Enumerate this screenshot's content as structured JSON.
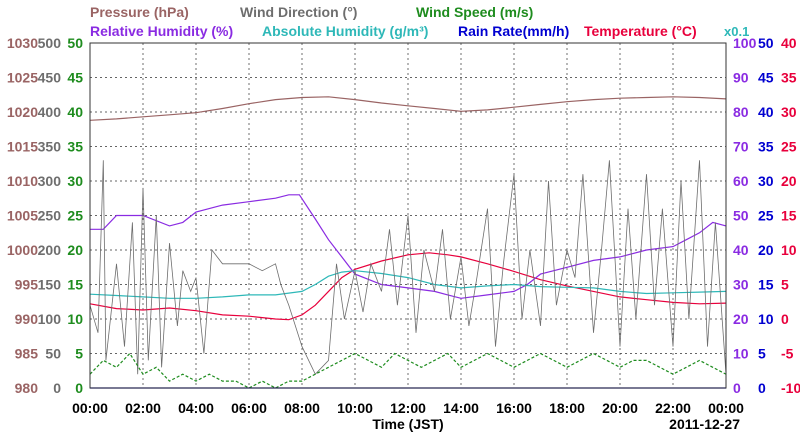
{
  "colors": {
    "pressure": "#9a6464",
    "wind_direction": "#6e6e6e",
    "wind_speed": "#1e8c1e",
    "relative_humidity": "#8a2be2",
    "absolute_humidity": "#2eb8b8",
    "rain_rate": "#0000d0",
    "temperature": "#e8003c",
    "grid": "#333333"
  },
  "chart_data": {
    "type": "line",
    "title": "",
    "legend_row1": [
      {
        "key": "pressure",
        "label": "Pressure (hPa)"
      },
      {
        "key": "wind_direction",
        "label": "Wind Direction (°)"
      },
      {
        "key": "wind_speed",
        "label": "Wind Speed (m/s)"
      }
    ],
    "legend_row2": [
      {
        "key": "relative_humidity",
        "label": "Relative Humidity (%)"
      },
      {
        "key": "absolute_humidity",
        "label": "Absolute Humidity (g/m³)"
      },
      {
        "key": "rain_rate",
        "label": "Rain Rate(mm/h)"
      },
      {
        "key": "temperature",
        "label": "Temperature (°C)"
      }
    ],
    "rain_multiplier_label": "x0.1",
    "xlabel": "Time (JST)",
    "date_label": "2011-12-27",
    "x_ticks": [
      "00:00",
      "02:00",
      "04:00",
      "06:00",
      "08:00",
      "10:00",
      "12:00",
      "14:00",
      "16:00",
      "18:00",
      "20:00",
      "22:00",
      "00:00"
    ],
    "x_range_hours": [
      0,
      24
    ],
    "grid": true,
    "axes": {
      "pressure": {
        "side": "left",
        "range": [
          980,
          1030
        ],
        "ticks": [
          "980",
          "985",
          "990",
          "995",
          "1000",
          "1005",
          "1010",
          "1015",
          "1020",
          "1025",
          "1030"
        ]
      },
      "wind_direction": {
        "side": "left",
        "range": [
          0,
          500
        ],
        "ticks": [
          "0",
          "50",
          "100",
          "150",
          "200",
          "250",
          "300",
          "350",
          "400",
          "450",
          "500"
        ]
      },
      "wind_speed": {
        "side": "left",
        "range": [
          0,
          50
        ],
        "ticks": [
          "0",
          "5",
          "10",
          "15",
          "20",
          "25",
          "30",
          "35",
          "40",
          "45",
          "50"
        ]
      },
      "relative_humidity": {
        "side": "right",
        "range": [
          0,
          100
        ],
        "ticks": [
          "0",
          "10",
          "20",
          "30",
          "40",
          "50",
          "60",
          "70",
          "80",
          "90",
          "100"
        ]
      },
      "rain_rate": {
        "side": "right",
        "range": [
          0,
          50
        ],
        "ticks": [
          "0",
          "5",
          "10",
          "15",
          "20",
          "25",
          "30",
          "35",
          "40",
          "45",
          "50"
        ]
      },
      "temperature": {
        "side": "right",
        "range": [
          -10,
          40
        ],
        "ticks": [
          "-10",
          "-5",
          "0",
          "5",
          "10",
          "15",
          "20",
          "25",
          "30",
          "35",
          "40"
        ]
      }
    },
    "series": [
      {
        "key": "pressure",
        "scale": "pressure",
        "x": [
          0,
          1,
          2,
          3,
          4,
          5,
          6,
          7,
          8,
          9,
          10,
          11,
          12,
          13,
          14,
          15,
          16,
          17,
          18,
          19,
          20,
          21,
          22,
          23,
          24
        ],
        "y": [
          1018.8,
          1019.0,
          1019.3,
          1019.6,
          1019.9,
          1020.5,
          1021.2,
          1021.8,
          1022.1,
          1022.2,
          1021.8,
          1021.3,
          1020.9,
          1020.5,
          1020.1,
          1020.3,
          1020.7,
          1021.1,
          1021.5,
          1021.8,
          1022.0,
          1022.1,
          1022.2,
          1022.1,
          1021.9
        ]
      },
      {
        "key": "temperature",
        "scale": "temperature",
        "x": [
          0,
          1,
          2,
          3,
          4,
          5,
          6,
          7,
          7.5,
          8,
          8.5,
          9,
          9.5,
          10,
          11,
          12,
          12.8,
          13.5,
          14,
          15,
          16,
          17,
          18,
          19,
          20,
          21,
          22,
          23,
          24
        ],
        "y": [
          2.2,
          1.5,
          1.3,
          1.6,
          1.2,
          0.6,
          0.4,
          0.0,
          -0.1,
          0.6,
          2.0,
          4.0,
          6.0,
          7.2,
          8.4,
          9.3,
          9.6,
          9.3,
          9.0,
          8.0,
          6.9,
          5.7,
          4.8,
          4.0,
          3.2,
          2.8,
          2.4,
          2.2,
          2.3
        ]
      },
      {
        "key": "relative_humidity",
        "scale": "relative_humidity",
        "x": [
          0,
          0.5,
          1,
          1.5,
          2,
          3,
          3.5,
          4,
          5,
          6,
          7,
          7.5,
          7.9,
          8.5,
          9,
          9.5,
          10,
          11,
          12,
          13,
          13.5,
          14,
          15,
          16,
          16.5,
          17,
          18,
          19,
          20,
          21,
          22,
          22.5,
          23,
          23.5,
          24
        ],
        "y": [
          46,
          46,
          50,
          50,
          50,
          47,
          48,
          51,
          53,
          54,
          55,
          56,
          56,
          49,
          43,
          38,
          33,
          30,
          29,
          28,
          27,
          26,
          27,
          28,
          30,
          33,
          35,
          37,
          38,
          40,
          41,
          43,
          45,
          48,
          47
        ]
      },
      {
        "key": "absolute_humidity",
        "scale": "wind_speed",
        "x": [
          0,
          1,
          2,
          3,
          4,
          5,
          6,
          7,
          8,
          8.5,
          9,
          9.5,
          10,
          11,
          12,
          13,
          14,
          15,
          16,
          17,
          18,
          19,
          20,
          21,
          22,
          23,
          24
        ],
        "y": [
          13.6,
          13.4,
          13.2,
          13.0,
          13.0,
          13.2,
          13.5,
          13.5,
          14.0,
          15.0,
          16.2,
          16.8,
          17.0,
          16.6,
          16.0,
          15.0,
          14.5,
          14.8,
          15.0,
          14.7,
          14.6,
          14.5,
          14.0,
          13.7,
          13.8,
          13.9,
          14.0
        ]
      },
      {
        "key": "wind_direction",
        "scale": "wind_direction",
        "x": [
          0,
          0.3,
          0.5,
          0.6,
          0.8,
          1,
          1.3,
          1.6,
          1.8,
          2,
          2.2,
          2.5,
          2.7,
          3,
          3.3,
          3.5,
          3.8,
          4,
          4.3,
          4.6,
          5,
          5.5,
          6,
          6.5,
          7,
          7.2,
          7.5,
          8,
          8.5,
          9,
          9.3,
          9.6,
          10,
          10.3,
          10.6,
          11,
          11.3,
          11.6,
          12,
          12.3,
          12.6,
          13,
          13.3,
          13.6,
          14,
          14.3,
          14.6,
          15,
          15.3,
          15.6,
          16,
          16.3,
          16.6,
          17,
          17.3,
          17.6,
          18,
          18.3,
          18.6,
          19,
          19.3,
          19.6,
          20,
          20.3,
          20.6,
          21,
          21.3,
          21.6,
          22,
          22.3,
          22.6,
          23,
          23.3,
          23.6,
          24
        ],
        "y": [
          120,
          80,
          330,
          40,
          110,
          180,
          60,
          240,
          20,
          290,
          40,
          250,
          30,
          210,
          90,
          170,
          140,
          160,
          50,
          200,
          180,
          180,
          180,
          170,
          180,
          150,
          120,
          60,
          20,
          40,
          180,
          100,
          170,
          110,
          180,
          140,
          230,
          120,
          250,
          80,
          200,
          140,
          230,
          100,
          190,
          90,
          160,
          260,
          60,
          180,
          310,
          100,
          200,
          90,
          300,
          120,
          200,
          160,
          310,
          80,
          200,
          330,
          60,
          260,
          100,
          310,
          120,
          260,
          60,
          300,
          100,
          330,
          60,
          240,
          20
        ]
      },
      {
        "key": "wind_speed",
        "scale": "wind_speed",
        "x": [
          0,
          0.5,
          1,
          1.5,
          2,
          2.5,
          3,
          3.5,
          4,
          4.5,
          5,
          5.5,
          6,
          6.5,
          7,
          7.5,
          8,
          8.5,
          9,
          9.5,
          10,
          10.5,
          11,
          11.5,
          12,
          12.5,
          13,
          13.5,
          14,
          14.5,
          15,
          15.5,
          16,
          16.5,
          17,
          17.5,
          18,
          18.5,
          19,
          19.5,
          20,
          20.5,
          21,
          21.5,
          22,
          22.5,
          23,
          23.5,
          24
        ],
        "y": [
          2,
          4,
          3,
          5,
          2,
          3,
          1,
          2,
          1,
          2,
          1,
          1,
          0,
          1,
          0,
          1,
          1,
          2,
          3,
          4,
          5,
          4,
          3,
          5,
          4,
          3,
          4,
          5,
          3,
          4,
          5,
          4,
          3,
          4,
          5,
          4,
          3,
          4,
          5,
          4,
          3,
          4,
          4,
          3,
          2,
          3,
          4,
          3,
          2
        ]
      },
      {
        "key": "rain_rate",
        "scale": "rain_rate",
        "x": [
          0,
          24
        ],
        "y": [
          0,
          0
        ]
      }
    ]
  }
}
